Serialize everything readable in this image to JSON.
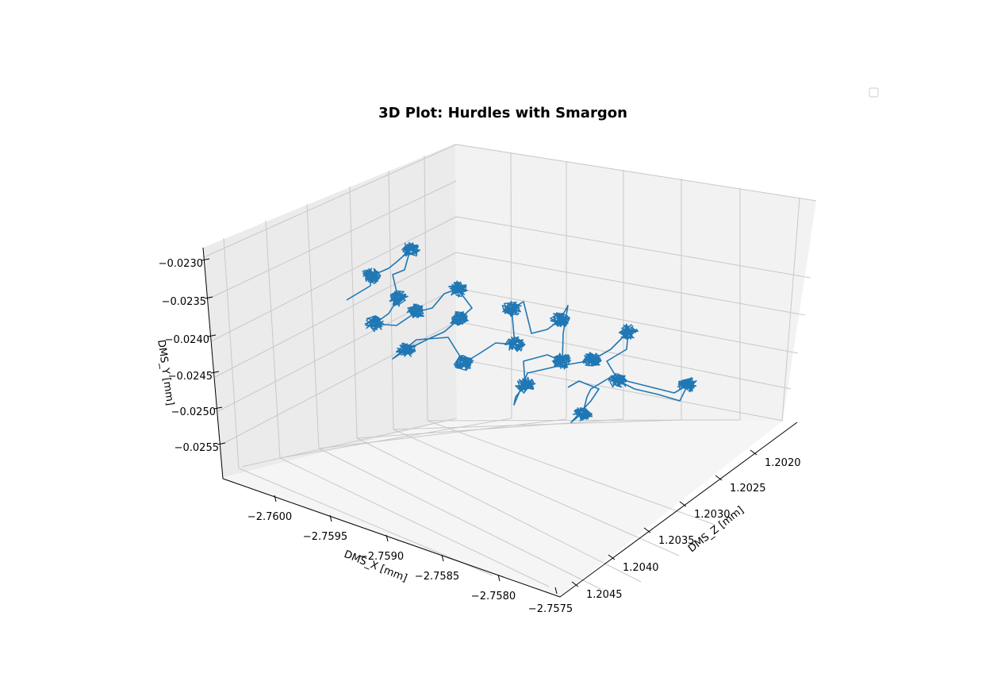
{
  "chart_data": {
    "type": "line",
    "title": "3D Plot: Hurdles with Smargon",
    "xlabel": "DMS_X [mm]",
    "ylabel": "DMS_Y [mm]",
    "zlabel": "DMS_Z [mm]",
    "x_ticks": [
      "−2.7600",
      "−2.7595",
      "−2.7590",
      "−2.7585",
      "−2.7580",
      "−2.7575"
    ],
    "y_ticks": [
      "−0.0230",
      "−0.0235",
      "−0.0240",
      "−0.0245",
      "−0.0250",
      "−0.0255"
    ],
    "z_ticks": [
      "1.2020",
      "1.2025",
      "1.2030",
      "1.2035",
      "1.2040",
      "1.2045"
    ],
    "series_color": "#1f77b4",
    "legend": "top-right, empty",
    "grid": true,
    "series": [
      {
        "cluster_centers": [
          [
            517,
            315
          ],
          [
            467,
            348
          ],
          [
            502,
            376
          ],
          [
            472,
            408
          ],
          [
            525,
            393
          ],
          [
            512,
            441
          ],
          [
            577,
            364
          ],
          [
            579,
            402
          ],
          [
            585,
            457
          ],
          [
            645,
            389
          ],
          [
            649,
            434
          ],
          [
            662,
            485
          ],
          [
            706,
            403
          ],
          [
            709,
            455
          ],
          [
            746,
            454
          ],
          [
            792,
            418
          ],
          [
            780,
            480
          ],
          [
            867,
            485
          ],
          [
            735,
            520
          ]
        ],
        "path_points": [
          [
            437,
            378
          ],
          [
            467,
            360
          ],
          [
            467,
            348
          ],
          [
            490,
            338
          ],
          [
            500,
            330
          ],
          [
            517,
            315
          ],
          [
            510,
            340
          ],
          [
            495,
            346
          ],
          [
            502,
            376
          ],
          [
            490,
            395
          ],
          [
            472,
            408
          ],
          [
            500,
            410
          ],
          [
            525,
            393
          ],
          [
            545,
            388
          ],
          [
            560,
            370
          ],
          [
            577,
            364
          ],
          [
            595,
            388
          ],
          [
            579,
            402
          ],
          [
            560,
            418
          ],
          [
            540,
            427
          ],
          [
            512,
            441
          ],
          [
            495,
            452
          ],
          [
            525,
            428
          ],
          [
            565,
            425
          ],
          [
            585,
            457
          ],
          [
            605,
            445
          ],
          [
            625,
            432
          ],
          [
            649,
            434
          ],
          [
            645,
            389
          ],
          [
            660,
            380
          ],
          [
            670,
            420
          ],
          [
            690,
            415
          ],
          [
            706,
            403
          ],
          [
            716,
            385
          ],
          [
            710,
            420
          ],
          [
            709,
            455
          ],
          [
            690,
            447
          ],
          [
            660,
            455
          ],
          [
            662,
            485
          ],
          [
            650,
            500
          ],
          [
            648,
            510
          ],
          [
            665,
            470
          ],
          [
            700,
            462
          ],
          [
            746,
            454
          ],
          [
            770,
            440
          ],
          [
            792,
            418
          ],
          [
            790,
            440
          ],
          [
            765,
            455
          ],
          [
            780,
            480
          ],
          [
            800,
            490
          ],
          [
            830,
            497
          ],
          [
            857,
            505
          ],
          [
            867,
            485
          ],
          [
            850,
            495
          ],
          [
            810,
            485
          ],
          [
            770,
            475
          ],
          [
            745,
            490
          ],
          [
            740,
            500
          ],
          [
            735,
            520
          ],
          [
            720,
            532
          ],
          [
            745,
            505
          ],
          [
            755,
            490
          ],
          [
            730,
            480
          ],
          [
            716,
            488
          ]
        ]
      }
    ]
  }
}
